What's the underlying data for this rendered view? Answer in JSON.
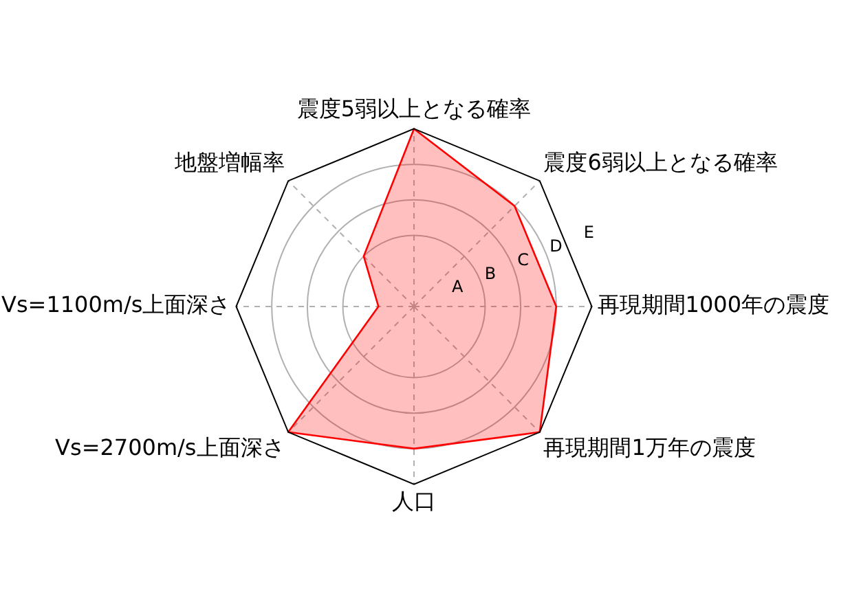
{
  "chart_data": {
    "type": "radar",
    "categories": [
      "震度5弱以上となる確率",
      "震度6弱以上となる確率",
      "再現期間1000年の震度",
      "再現期間1万年の震度",
      "人口",
      "Vs=2700m/s上面深さ",
      "Vs=1100m/s上面深さ",
      "地盤増幅率"
    ],
    "series": [
      {
        "color": "#ff0000",
        "values": [
          5,
          4,
          4,
          5,
          4,
          5,
          1,
          2
        ]
      }
    ],
    "ylim": [
      0,
      5
    ],
    "yticks": [
      {
        "value": 1,
        "label": "A"
      },
      {
        "value": 2,
        "label": "B"
      },
      {
        "value": 3,
        "label": "C"
      },
      {
        "value": 4,
        "label": "D"
      },
      {
        "value": 5,
        "label": "E"
      }
    ],
    "grid": true,
    "legend": false,
    "marker": "none",
    "line_style": "solid"
  }
}
